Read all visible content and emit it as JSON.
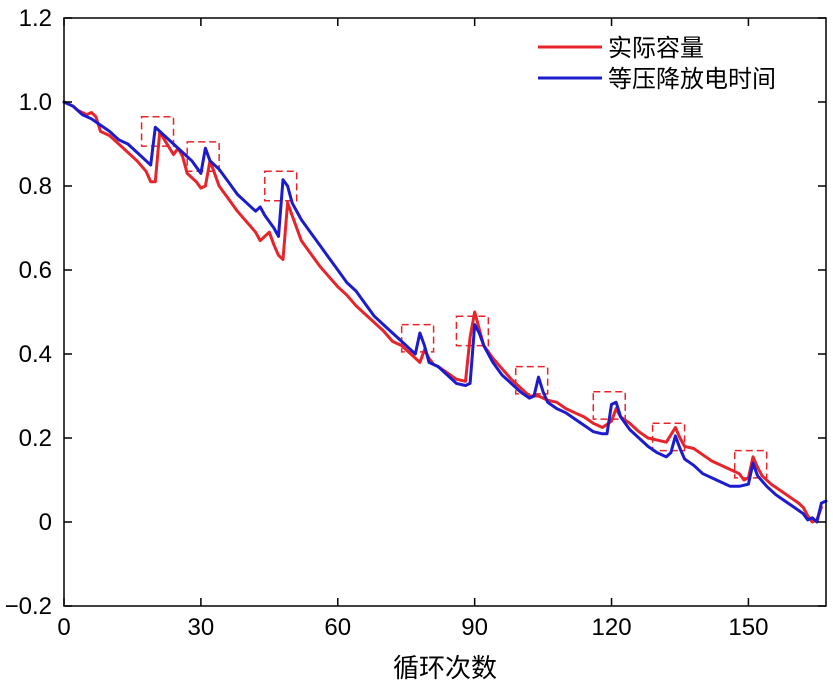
{
  "chart_data": {
    "type": "line",
    "title": "",
    "xlabel": "循环次数",
    "ylabel": "",
    "xlim": [
      0,
      167
    ],
    "ylim": [
      -0.2,
      1.2
    ],
    "x_ticks": [
      0,
      30,
      60,
      90,
      120,
      150
    ],
    "y_ticks": [
      -0.2,
      0,
      0.2,
      0.4,
      0.6,
      0.8,
      1.0,
      1.2
    ],
    "y_tick_labels": [
      "−0.2",
      "0",
      "0.2",
      "0.4",
      "0.6",
      "0.8",
      "1.0",
      "1.2"
    ],
    "grid": false,
    "legend": "top-right",
    "highlight_color": "#e8242b",
    "highlight_boxes": [
      {
        "x": [
          17,
          24
        ],
        "y": [
          0.895,
          0.965
        ]
      },
      {
        "x": [
          27,
          34
        ],
        "y": [
          0.835,
          0.905
        ]
      },
      {
        "x": [
          44,
          51
        ],
        "y": [
          0.765,
          0.835
        ]
      },
      {
        "x": [
          74,
          81
        ],
        "y": [
          0.405,
          0.47
        ]
      },
      {
        "x": [
          86,
          93
        ],
        "y": [
          0.42,
          0.49
        ]
      },
      {
        "x": [
          99,
          106
        ],
        "y": [
          0.305,
          0.37
        ]
      },
      {
        "x": [
          116,
          123
        ],
        "y": [
          0.245,
          0.31
        ]
      },
      {
        "x": [
          129,
          136
        ],
        "y": [
          0.17,
          0.235
        ]
      },
      {
        "x": [
          147,
          154
        ],
        "y": [
          0.105,
          0.17
        ]
      }
    ],
    "series": [
      {
        "name": "实际容量",
        "color": "#e8242b",
        "points": [
          [
            0,
            1.0
          ],
          [
            2,
            0.99
          ],
          [
            3,
            0.98
          ],
          [
            5,
            0.97
          ],
          [
            6,
            0.975
          ],
          [
            7,
            0.965
          ],
          [
            8,
            0.93
          ],
          [
            10,
            0.92
          ],
          [
            13,
            0.89
          ],
          [
            16,
            0.86
          ],
          [
            18,
            0.835
          ],
          [
            19,
            0.81
          ],
          [
            20,
            0.81
          ],
          [
            21,
            0.93
          ],
          [
            22,
            0.91
          ],
          [
            24,
            0.875
          ],
          [
            25,
            0.89
          ],
          [
            26,
            0.87
          ],
          [
            27,
            0.83
          ],
          [
            28,
            0.82
          ],
          [
            29,
            0.81
          ],
          [
            30,
            0.795
          ],
          [
            31,
            0.8
          ],
          [
            32,
            0.86
          ],
          [
            33,
            0.83
          ],
          [
            34,
            0.8
          ],
          [
            36,
            0.77
          ],
          [
            38,
            0.74
          ],
          [
            40,
            0.715
          ],
          [
            42,
            0.69
          ],
          [
            43,
            0.67
          ],
          [
            45,
            0.69
          ],
          [
            46,
            0.66
          ],
          [
            47,
            0.635
          ],
          [
            48,
            0.625
          ],
          [
            49,
            0.76
          ],
          [
            50,
            0.73
          ],
          [
            51,
            0.7
          ],
          [
            52,
            0.67
          ],
          [
            54,
            0.64
          ],
          [
            56,
            0.61
          ],
          [
            58,
            0.585
          ],
          [
            60,
            0.56
          ],
          [
            62,
            0.54
          ],
          [
            64,
            0.515
          ],
          [
            66,
            0.495
          ],
          [
            68,
            0.475
          ],
          [
            70,
            0.455
          ],
          [
            72,
            0.43
          ],
          [
            74,
            0.42
          ],
          [
            76,
            0.4
          ],
          [
            77,
            0.39
          ],
          [
            78,
            0.38
          ],
          [
            79,
            0.41
          ],
          [
            80,
            0.39
          ],
          [
            81,
            0.375
          ],
          [
            82,
            0.37
          ],
          [
            84,
            0.355
          ],
          [
            86,
            0.34
          ],
          [
            88,
            0.335
          ],
          [
            89,
            0.44
          ],
          [
            90,
            0.5
          ],
          [
            91,
            0.46
          ],
          [
            92,
            0.42
          ],
          [
            94,
            0.39
          ],
          [
            96,
            0.365
          ],
          [
            98,
            0.34
          ],
          [
            100,
            0.32
          ],
          [
            102,
            0.3
          ],
          [
            104,
            0.3
          ],
          [
            106,
            0.29
          ],
          [
            108,
            0.285
          ],
          [
            110,
            0.27
          ],
          [
            112,
            0.26
          ],
          [
            114,
            0.25
          ],
          [
            116,
            0.235
          ],
          [
            118,
            0.225
          ],
          [
            120,
            0.24
          ],
          [
            121,
            0.27
          ],
          [
            122,
            0.25
          ],
          [
            124,
            0.235
          ],
          [
            126,
            0.215
          ],
          [
            128,
            0.2
          ],
          [
            130,
            0.195
          ],
          [
            132,
            0.19
          ],
          [
            134,
            0.225
          ],
          [
            135,
            0.2
          ],
          [
            136,
            0.18
          ],
          [
            138,
            0.175
          ],
          [
            140,
            0.16
          ],
          [
            142,
            0.145
          ],
          [
            144,
            0.135
          ],
          [
            146,
            0.125
          ],
          [
            148,
            0.115
          ],
          [
            149,
            0.1
          ],
          [
            150,
            0.105
          ],
          [
            151,
            0.155
          ],
          [
            152,
            0.13
          ],
          [
            153,
            0.11
          ],
          [
            155,
            0.09
          ],
          [
            157,
            0.075
          ],
          [
            159,
            0.06
          ],
          [
            161,
            0.045
          ],
          [
            162,
            0.035
          ],
          [
            163,
            0.015
          ],
          [
            164,
            0.0
          ],
          [
            165,
            0.005
          ],
          [
            166,
            0.035
          ]
        ]
      },
      {
        "name": "等压降放电时间",
        "color": "#1c1ccc",
        "points": [
          [
            0,
            1.0
          ],
          [
            2,
            0.99
          ],
          [
            4,
            0.97
          ],
          [
            6,
            0.96
          ],
          [
            8,
            0.945
          ],
          [
            10,
            0.93
          ],
          [
            12,
            0.91
          ],
          [
            14,
            0.9
          ],
          [
            16,
            0.88
          ],
          [
            18,
            0.86
          ],
          [
            19,
            0.85
          ],
          [
            20,
            0.94
          ],
          [
            22,
            0.92
          ],
          [
            24,
            0.9
          ],
          [
            26,
            0.88
          ],
          [
            28,
            0.86
          ],
          [
            30,
            0.83
          ],
          [
            31,
            0.89
          ],
          [
            32,
            0.86
          ],
          [
            34,
            0.84
          ],
          [
            36,
            0.81
          ],
          [
            38,
            0.78
          ],
          [
            40,
            0.76
          ],
          [
            42,
            0.74
          ],
          [
            43,
            0.75
          ],
          [
            44,
            0.73
          ],
          [
            46,
            0.7
          ],
          [
            47,
            0.68
          ],
          [
            48,
            0.815
          ],
          [
            49,
            0.8
          ],
          [
            50,
            0.76
          ],
          [
            52,
            0.72
          ],
          [
            54,
            0.69
          ],
          [
            56,
            0.66
          ],
          [
            58,
            0.63
          ],
          [
            60,
            0.6
          ],
          [
            62,
            0.57
          ],
          [
            64,
            0.55
          ],
          [
            66,
            0.52
          ],
          [
            68,
            0.49
          ],
          [
            70,
            0.47
          ],
          [
            72,
            0.45
          ],
          [
            74,
            0.43
          ],
          [
            76,
            0.41
          ],
          [
            77,
            0.4
          ],
          [
            78,
            0.45
          ],
          [
            79,
            0.42
          ],
          [
            80,
            0.38
          ],
          [
            82,
            0.37
          ],
          [
            84,
            0.35
          ],
          [
            86,
            0.33
          ],
          [
            88,
            0.325
          ],
          [
            89,
            0.33
          ],
          [
            90,
            0.47
          ],
          [
            91,
            0.45
          ],
          [
            92,
            0.42
          ],
          [
            94,
            0.38
          ],
          [
            96,
            0.35
          ],
          [
            98,
            0.33
          ],
          [
            100,
            0.31
          ],
          [
            102,
            0.295
          ],
          [
            103,
            0.3
          ],
          [
            104,
            0.345
          ],
          [
            105,
            0.31
          ],
          [
            106,
            0.285
          ],
          [
            108,
            0.27
          ],
          [
            110,
            0.26
          ],
          [
            112,
            0.245
          ],
          [
            114,
            0.23
          ],
          [
            116,
            0.215
          ],
          [
            118,
            0.21
          ],
          [
            119,
            0.21
          ],
          [
            120,
            0.28
          ],
          [
            121,
            0.285
          ],
          [
            122,
            0.25
          ],
          [
            124,
            0.22
          ],
          [
            126,
            0.2
          ],
          [
            128,
            0.18
          ],
          [
            130,
            0.165
          ],
          [
            132,
            0.155
          ],
          [
            133,
            0.165
          ],
          [
            134,
            0.205
          ],
          [
            135,
            0.175
          ],
          [
            136,
            0.15
          ],
          [
            138,
            0.135
          ],
          [
            140,
            0.115
          ],
          [
            142,
            0.105
          ],
          [
            144,
            0.095
          ],
          [
            146,
            0.085
          ],
          [
            148,
            0.085
          ],
          [
            150,
            0.09
          ],
          [
            151,
            0.14
          ],
          [
            152,
            0.11
          ],
          [
            154,
            0.085
          ],
          [
            156,
            0.065
          ],
          [
            158,
            0.05
          ],
          [
            160,
            0.035
          ],
          [
            162,
            0.02
          ],
          [
            163,
            0.005
          ],
          [
            164,
            0.01
          ],
          [
            165,
            0.0
          ],
          [
            166,
            0.045
          ],
          [
            167,
            0.05
          ]
        ]
      }
    ]
  }
}
